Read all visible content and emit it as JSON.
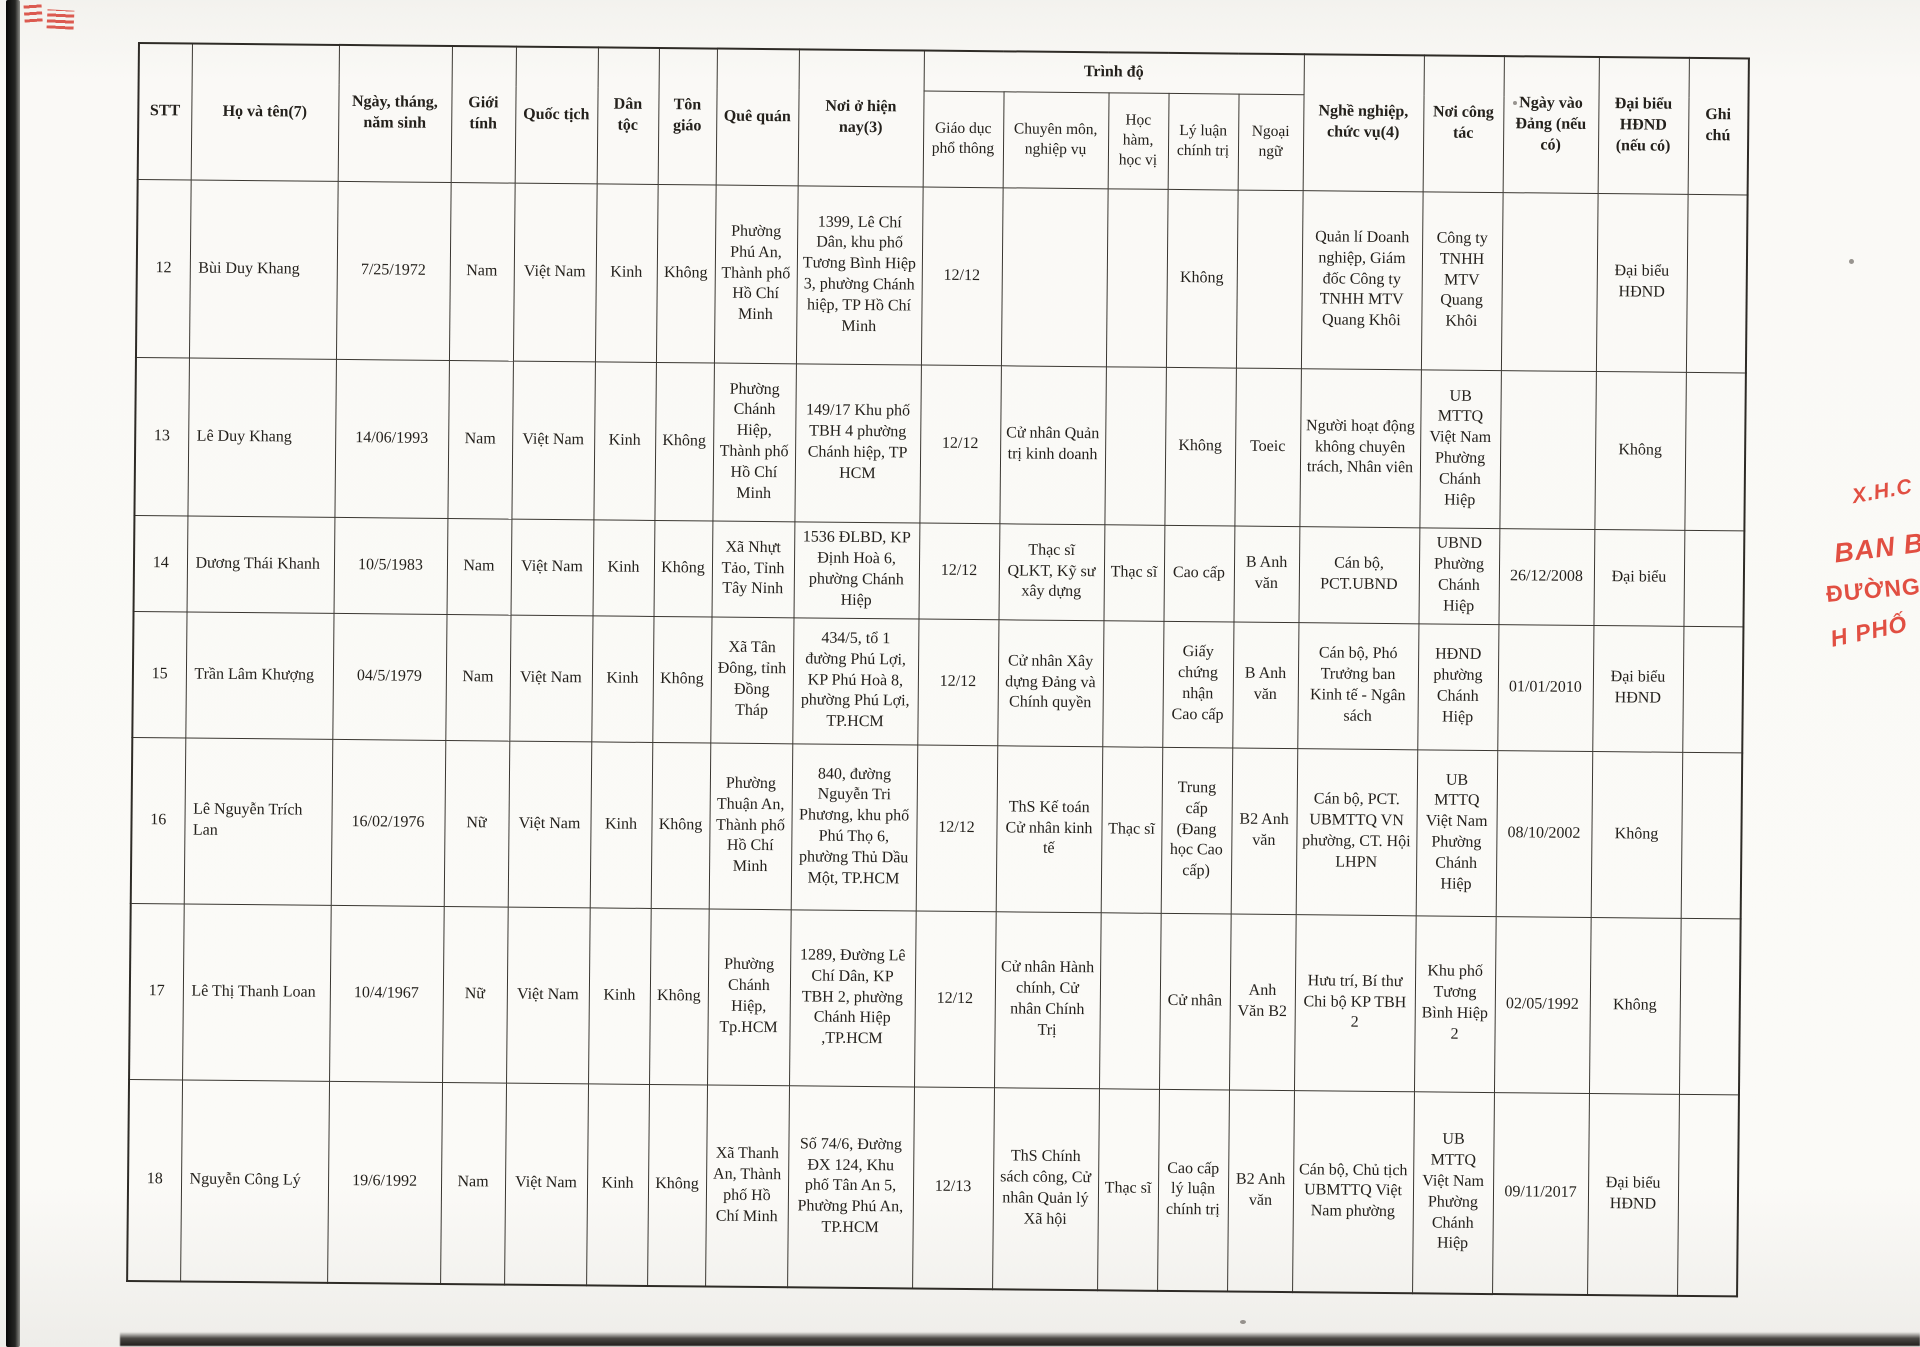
{
  "table": {
    "group_header": "Trình độ",
    "headers": {
      "stt": "STT",
      "name": "Họ và tên(7)",
      "dob": "Ngày, tháng, năm sinh",
      "gender": "Giới tính",
      "nationality": "Quốc tịch",
      "ethnicity": "Dân tộc",
      "religion": "Tôn giáo",
      "hometown": "Quê quán",
      "residence": "Nơi ở hiện nay(3)",
      "edu": "Giáo dục phổ thông",
      "professional": "Chuyên môn, nghiệp vụ",
      "degree": "Học hàm, học vị",
      "politics": "Lý luận chính trị",
      "language": "Ngoại ngữ",
      "occupation": "Nghề nghiệp, chức vụ(4)",
      "workplace": "Nơi công tác",
      "party_date": "Ngày vào Đảng (nếu có)",
      "council": "Đại biểu HĐND (nếu có)",
      "notes": "Ghi chú"
    },
    "column_keys": [
      "stt",
      "name",
      "dob",
      "gender",
      "nationality",
      "ethnicity",
      "religion",
      "hometown",
      "residence",
      "edu",
      "professional",
      "degree",
      "politics",
      "language",
      "occupation",
      "workplace",
      "party_date",
      "council",
      "notes"
    ],
    "rows": [
      {
        "stt": "12",
        "name": "Bùi Duy Khang",
        "dob": "7/25/1972",
        "gender": "Nam",
        "nationality": "Việt Nam",
        "ethnicity": "Kinh",
        "religion": "Không",
        "hometown": "Phường Phú An, Thành phố Hồ Chí Minh",
        "residence": "1399, Lê Chí Dân, khu phố Tương Bình Hiệp 3, phường Chánh hiệp, TP Hồ Chí Minh",
        "edu": "12/12",
        "professional": "",
        "degree": "",
        "politics": "Không",
        "language": "",
        "occupation": "Quản lí Doanh nghiệp, Giám đốc Công ty TNHH MTV Quang Khôi",
        "workplace": "Công ty TNHH MTV Quang Khôi",
        "party_date": "",
        "council": "Đại biểu HĐND",
        "notes": ""
      },
      {
        "stt": "13",
        "name": "Lê Duy Khang",
        "dob": "14/06/1993",
        "gender": "Nam",
        "nationality": "Việt Nam",
        "ethnicity": "Kinh",
        "religion": "Không",
        "hometown": "Phường Chánh Hiệp, Thành phố Hồ Chí Minh",
        "residence": "149/17 Khu phố TBH 4 phường Chánh hiệp, TP HCM",
        "edu": "12/12",
        "professional": "Cử nhân Quản trị kinh doanh",
        "degree": "",
        "politics": "Không",
        "language": "Toeic",
        "occupation": "Người hoạt động không chuyên trách, Nhân viên",
        "workplace": "UB MTTQ Việt Nam Phường Chánh Hiệp",
        "party_date": "",
        "council": "Không",
        "notes": ""
      },
      {
        "stt": "14",
        "name": "Dương Thái Khanh",
        "dob": "10/5/1983",
        "gender": "Nam",
        "nationality": "Việt Nam",
        "ethnicity": "Kinh",
        "religion": "Không",
        "hometown": "Xã Nhựt Tảo, Tỉnh Tây Ninh",
        "residence": "1536 ĐLBD, KP Định Hoà 6, phường Chánh Hiệp",
        "edu": "12/12",
        "professional": "Thạc sĩ QLKT, Kỹ sư xây dựng",
        "degree": "Thạc sĩ",
        "politics": "Cao cấp",
        "language": "B Anh văn",
        "occupation": "Cán bộ, PCT.UBND",
        "workplace": "UBND Phường Chánh Hiệp",
        "party_date": "26/12/2008",
        "council": "Đại biểu",
        "notes": ""
      },
      {
        "stt": "15",
        "name": "Trần Lâm Khượng",
        "dob": "04/5/1979",
        "gender": "Nam",
        "nationality": "Việt Nam",
        "ethnicity": "Kinh",
        "religion": "Không",
        "hometown": "Xã Tân Đông, tỉnh Đồng Tháp",
        "residence": "434/5, tổ 1 đường Phú Lợi, KP Phú Hoà 8, phường Phú Lợi, TP.HCM",
        "edu": "12/12",
        "professional": "Cử nhân Xây dựng Đảng và Chính quyền",
        "degree": "",
        "politics": "Giấy chứng nhận Cao cấp",
        "language": "B Anh văn",
        "occupation": "Cán bộ, Phó Trưởng ban Kinh tế - Ngân sách",
        "workplace": "HĐND phường Chánh Hiệp",
        "party_date": "01/01/2010",
        "council": "Đại biểu HĐND",
        "notes": ""
      },
      {
        "stt": "16",
        "name": "Lê Nguyễn Trích Lan",
        "dob": "16/02/1976",
        "gender": "Nữ",
        "nationality": "Việt Nam",
        "ethnicity": "Kinh",
        "religion": "Không",
        "hometown": "Phường Thuận An, Thành phố Hồ Chí Minh",
        "residence": "840, đường Nguyễn Tri Phương, khu phố Phú Thọ 6, phường Thủ Dầu Một, TP.HCM",
        "edu": "12/12",
        "professional": "ThS Kế toán Cử nhân kinh tế",
        "degree": "Thạc sĩ",
        "politics": "Trung cấp (Đang học Cao cấp)",
        "language": "B2 Anh văn",
        "occupation": "Cán bộ, PCT. UBMTTQ VN phường, CT. Hội LHPN",
        "workplace": "UB MTTQ Việt Nam Phường Chánh Hiệp",
        "party_date": "08/10/2002",
        "council": "Không",
        "notes": ""
      },
      {
        "stt": "17",
        "name": "Lê Thị Thanh Loan",
        "dob": "10/4/1967",
        "gender": "Nữ",
        "nationality": "Việt Nam",
        "ethnicity": "Kinh",
        "religion": "Không",
        "hometown": "Phường Chánh Hiệp, Tp.HCM",
        "residence": "1289, Đường Lê Chí Dân, KP TBH 2, phường Chánh Hiệp ,TP.HCM",
        "edu": "12/12",
        "professional": "Cử nhân Hành chính, Cử nhân Chính Trị",
        "degree": "",
        "politics": "Cử nhân",
        "language": "Anh Văn B2",
        "occupation": "Hưu trí, Bí thư Chi bộ KP TBH 2",
        "workplace": "Khu phố Tương Bình Hiệp 2",
        "party_date": "02/05/1992",
        "council": "Không",
        "notes": ""
      },
      {
        "stt": "18",
        "name": "Nguyễn Công Lý",
        "dob": "19/6/1992",
        "gender": "Nam",
        "nationality": "Việt Nam",
        "ethnicity": "Kinh",
        "religion": "Không",
        "hometown": "Xã Thanh An, Thành phố Hồ Chí Minh",
        "residence": "Số 74/6, Đường ĐX 124, Khu phố Tân An 5, Phường Phú An, TP.HCM",
        "edu": "12/13",
        "professional": "ThS Chính sách công, Cử nhân Quản lý Xã hội",
        "degree": "Thạc sĩ",
        "politics": "Cao cấp lý luận chính trị",
        "language": "B2 Anh văn",
        "occupation": "Cán bộ, Chủ tịch UBMTTQ Việt Nam phường",
        "workplace": "UB MTTQ Việt Nam Phường Chánh Hiệp",
        "party_date": "09/11/2017",
        "council": "Đại biểu HĐND",
        "notes": ""
      }
    ]
  },
  "stamp": {
    "color": "#de382a",
    "fragments": [
      "X.H.C",
      "BAN B",
      "ĐƯỜNG CH",
      "H PHỐ"
    ]
  }
}
